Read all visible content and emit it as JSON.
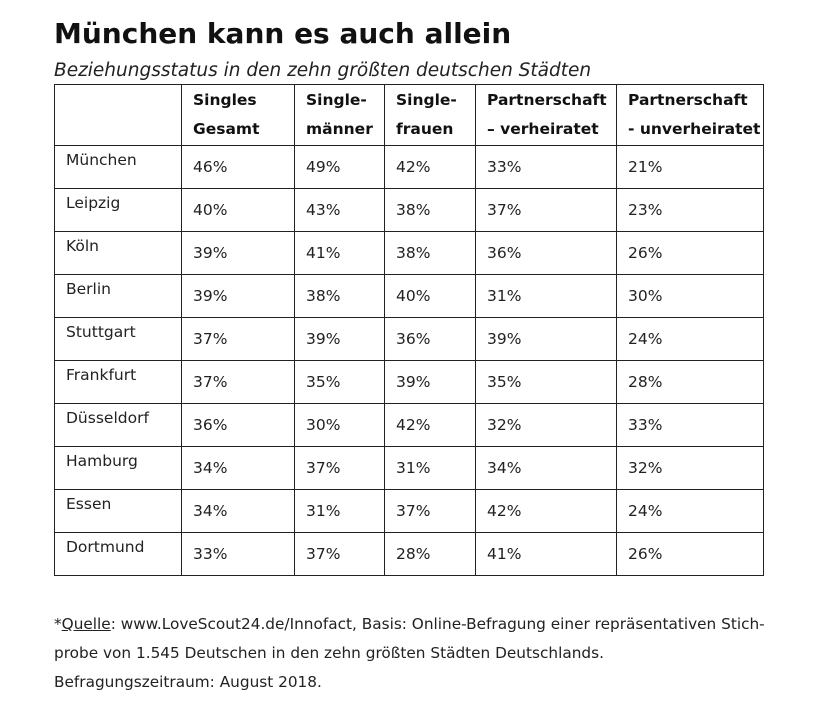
{
  "title": "München kann es auch allein",
  "subtitle": "Beziehungsstatus in den zehn größten deutschen Städten",
  "table": {
    "headers": [
      [
        "Singles",
        "Gesamt"
      ],
      [
        "Single-",
        "männer"
      ],
      [
        "Single-",
        "frauen"
      ],
      [
        "Partnerschaft",
        "– verheiratet"
      ],
      [
        "Partnerschaft",
        "- unverheiratet"
      ]
    ],
    "rows": [
      {
        "city": "München",
        "values": [
          "46%",
          "49%",
          "42%",
          "33%",
          "21%"
        ]
      },
      {
        "city": "Leipzig",
        "values": [
          "40%",
          "43%",
          "38%",
          "37%",
          "23%"
        ]
      },
      {
        "city": "Köln",
        "values": [
          "39%",
          "41%",
          "38%",
          "36%",
          "26%"
        ]
      },
      {
        "city": "Berlin",
        "values": [
          "39%",
          "38%",
          "40%",
          "31%",
          "30%"
        ]
      },
      {
        "city": "Stuttgart",
        "values": [
          "37%",
          "39%",
          "36%",
          "39%",
          "24%"
        ]
      },
      {
        "city": "Frankfurt",
        "values": [
          "37%",
          "35%",
          "39%",
          "35%",
          "28%"
        ]
      },
      {
        "city": "Düsseldorf",
        "values": [
          "36%",
          "30%",
          "42%",
          "32%",
          "33%"
        ]
      },
      {
        "city": "Hamburg",
        "values": [
          "34%",
          "37%",
          "31%",
          "34%",
          "32%"
        ]
      },
      {
        "city": "Essen",
        "values": [
          "34%",
          "31%",
          "37%",
          "42%",
          "24%"
        ]
      },
      {
        "city": "Dortmund",
        "values": [
          "33%",
          "37%",
          "28%",
          "41%",
          "26%"
        ]
      }
    ]
  },
  "source": {
    "prefix": "*",
    "label": "Quelle",
    "line1_rest": ": www.LoveScout24.de/Innofact, Basis: Online-Befragung einer repräsentativen Stich-",
    "line2": "probe von 1.545 Deutschen in den zehn größten Städten Deutschlands.",
    "line3": "Befragungszeitraum: August 2018."
  }
}
